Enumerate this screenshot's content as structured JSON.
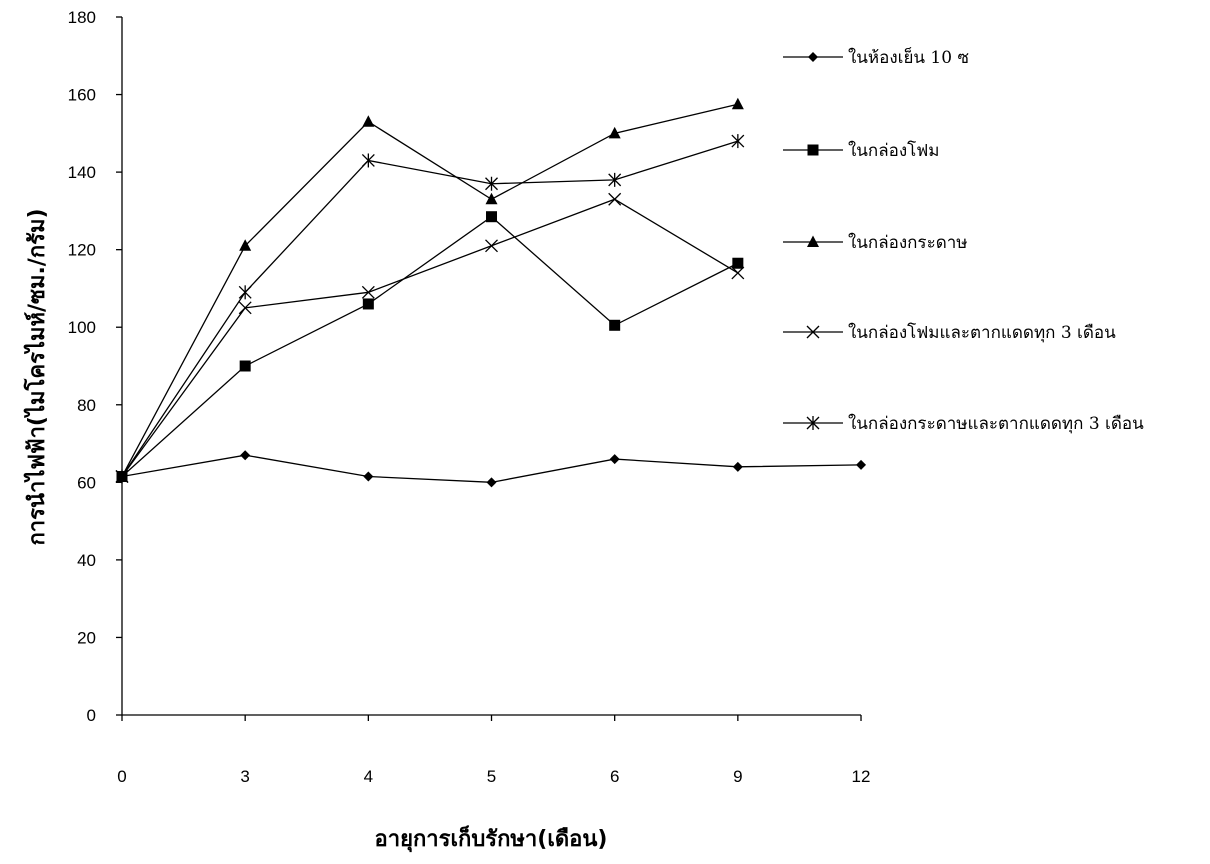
{
  "chart_data": {
    "type": "line",
    "title": "",
    "xlabel": "อายุการเก็บรักษา(เดือน)",
    "ylabel": "การนำไฟฟ้า(ไมโครไมห์/ซม./กรัม)",
    "categories": [
      "0",
      "3",
      "4",
      "5",
      "6",
      "9",
      "12"
    ],
    "ylim": [
      0,
      180
    ],
    "yticks": [
      0,
      20,
      40,
      60,
      80,
      100,
      120,
      140,
      160,
      180
    ],
    "grid": false,
    "legend_position": "right",
    "series": [
      {
        "name": "ในห้องเย็น 10 ซ",
        "marker": "diamond",
        "values": [
          61.5,
          67,
          61.5,
          60,
          66,
          64,
          64.5
        ]
      },
      {
        "name": "ในกล่องโฟม",
        "marker": "square",
        "values": [
          61.5,
          90,
          106,
          128.5,
          100.5,
          116.5,
          null
        ]
      },
      {
        "name": "ในกล่องกระดาษ",
        "marker": "triangle",
        "values": [
          61.5,
          121,
          153,
          133,
          150,
          157.5,
          null
        ]
      },
      {
        "name": "ในกล่องโฟมและตากแดดทุก 3 เดือน",
        "marker": "x",
        "values": [
          61.5,
          105,
          109,
          121,
          133,
          114,
          null
        ]
      },
      {
        "name": "ในกล่องกระดาษและตากแดดทุก 3 เดือน",
        "marker": "star",
        "values": [
          61.5,
          109,
          143,
          137,
          138,
          148,
          null
        ]
      }
    ]
  }
}
